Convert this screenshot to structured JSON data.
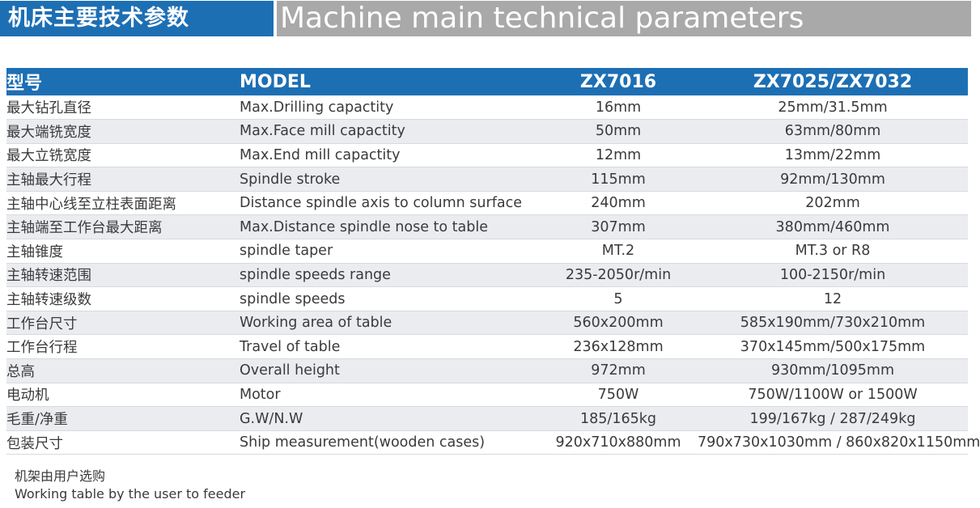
{
  "title": {
    "cn": "机床主要技术参数",
    "en": "Machine main technical parameters"
  },
  "header": {
    "cn": "型号",
    "model": "MODEL",
    "col1": "ZX7016",
    "col2": "ZX7025/ZX7032"
  },
  "rows": [
    {
      "cn": "最大钻孔直径",
      "en": "Max.Drilling capactity",
      "v1": "16mm",
      "v2": "25mm/31.5mm"
    },
    {
      "cn": "最大端铣宽度",
      "en": "Max.Face mill  capactity",
      "v1": "50mm",
      "v2": "63mm/80mm"
    },
    {
      "cn": "最大立铣宽度",
      "en": "Max.End mill capactity",
      "v1": "12mm",
      "v2": "13mm/22mm"
    },
    {
      "cn": "主轴最大行程",
      "en": "Spindle stroke",
      "v1": "115mm",
      "v2": "92mm/130mm"
    },
    {
      "cn": "主轴中心线至立柱表面距离",
      "en": "Distance spindle axis to column surface",
      "v1": "240mm",
      "v2": "202mm"
    },
    {
      "cn": "主轴端至工作台最大距离",
      "en": "Max.Distance spindle nose to table",
      "v1": "307mm",
      "v2": "380mm/460mm"
    },
    {
      "cn": "主轴锥度",
      "en": "spindle taper",
      "v1": "MT.2",
      "v2": "MT.3 or R8"
    },
    {
      "cn": "主轴转速范围",
      "en": "spindle speeds range",
      "v1": "235-2050r/min",
      "v2": "100-2150r/min"
    },
    {
      "cn": "主轴转速级数",
      "en": "spindle speeds",
      "v1": "5",
      "v2": "12"
    },
    {
      "cn": "工作台尺寸",
      "en": "Working area of table",
      "v1": "560x200mm",
      "v2": "585x190mm/730x210mm"
    },
    {
      "cn": "工作台行程",
      "en": "Travel of table",
      "v1": "236x128mm",
      "v2": "370x145mm/500x175mm"
    },
    {
      "cn": "总高",
      "en": "Overall height",
      "v1": "972mm",
      "v2": "930mm/1095mm"
    },
    {
      "cn": "电动机",
      "en": "Motor",
      "v1": "750W",
      "v2": "750W/1100W or 1500W"
    },
    {
      "cn": "毛重/净重",
      "en": "G.W/N.W",
      "v1": "185/165kg",
      "v2": "199/167kg / 287/249kg"
    },
    {
      "cn": "包装尺寸",
      "en": "Ship measurement(wooden cases)",
      "v1": "920x710x880mm",
      "v2": "790x730x1030mm / 860x820x1150mm"
    }
  ],
  "footnote": {
    "cn": "机架由用户选购",
    "en": "Working table by the user to feeder"
  },
  "colors": {
    "header_blue": "#1d6fb4",
    "title_grey": "#a9a9a9",
    "row_alt": "#eaecef"
  }
}
